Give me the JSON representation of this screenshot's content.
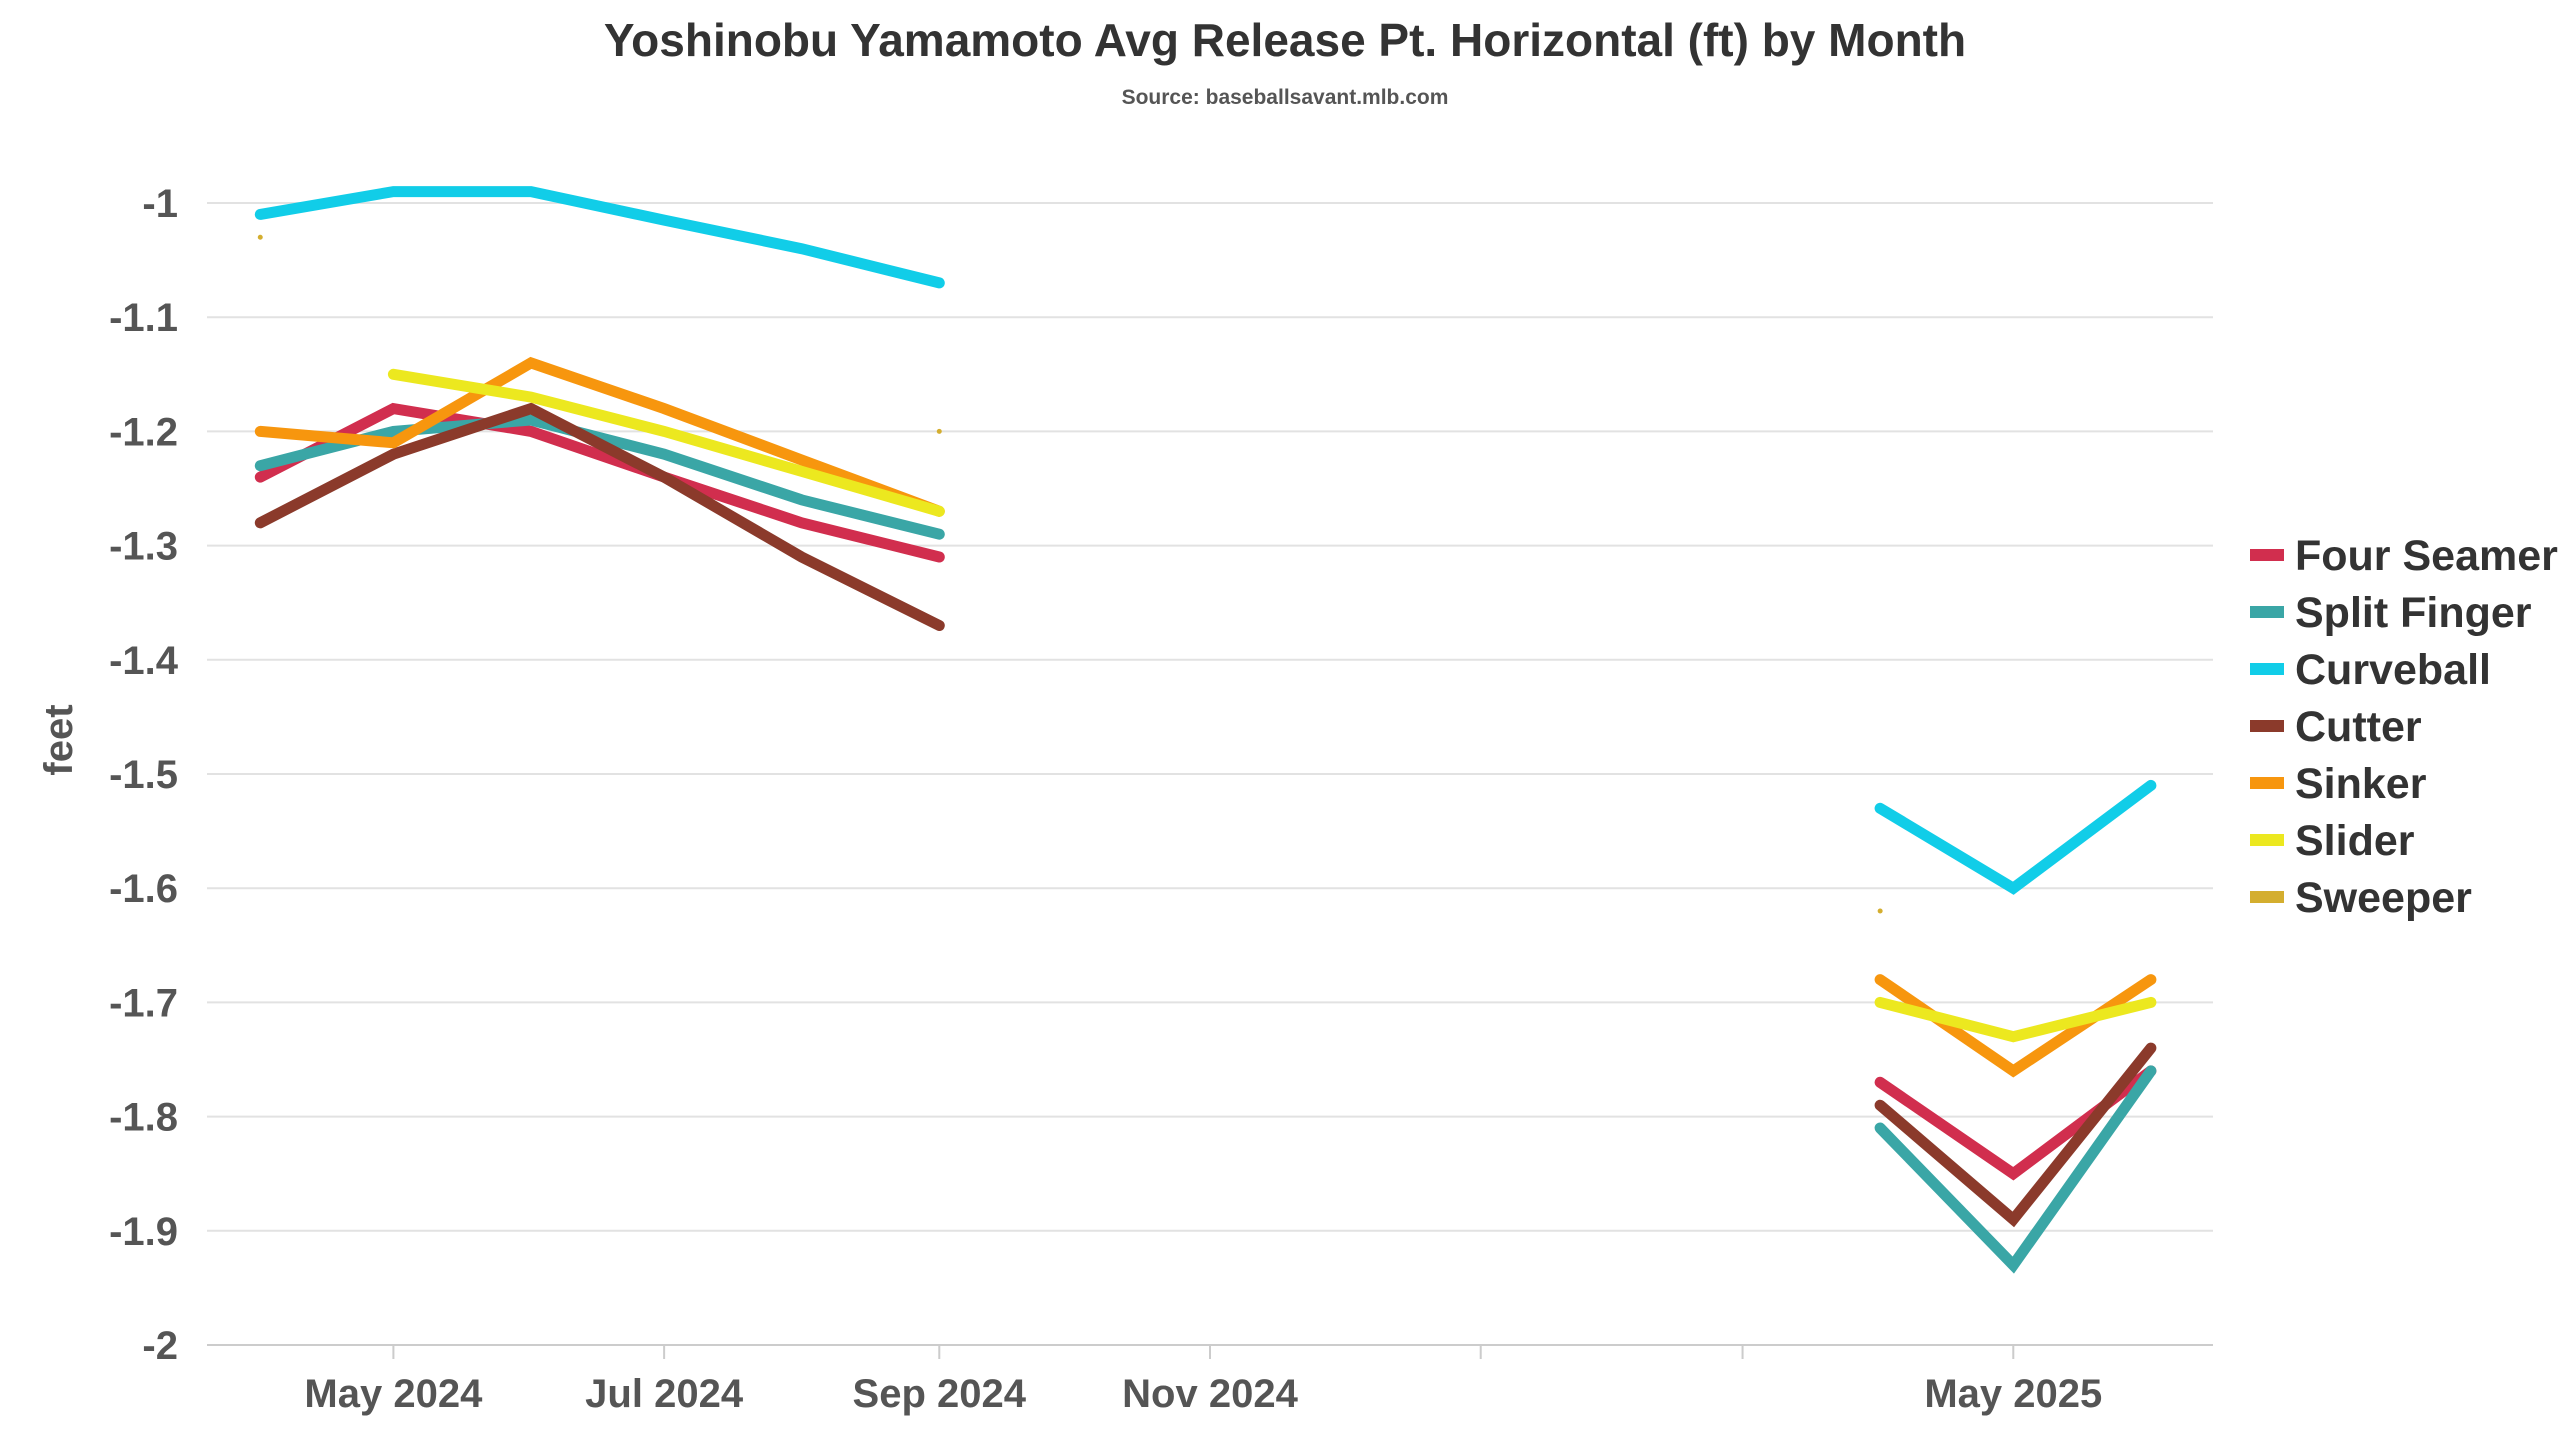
{
  "chart_data": {
    "type": "line",
    "title": "Yoshinobu Yamamoto Avg Release Pt. Horizontal (ft) by Month",
    "subtitle": "Source: baseballsavant.mlb.com",
    "ylabel": "feet",
    "xlabel": "",
    "ylim": [
      -2,
      -0.95
    ],
    "y_ticks": [
      -1,
      -1.1,
      -1.2,
      -1.3,
      -1.4,
      -1.5,
      -1.6,
      -1.7,
      -1.8,
      -1.9,
      -2
    ],
    "y_tick_labels": [
      "-1",
      "-1.1",
      "-1.2",
      "-1.3",
      "-1.4",
      "-1.5",
      "-1.6",
      "-1.7",
      "-1.8",
      "-1.9",
      "-2"
    ],
    "x_ticks": [
      {
        "date": "2024-05",
        "label": "May 2024"
      },
      {
        "date": "2024-07",
        "label": "Jul 2024"
      },
      {
        "date": "2024-09",
        "label": "Sep 2024"
      },
      {
        "date": "2024-11",
        "label": "Nov 2024"
      },
      {
        "date": "2025-01",
        "label": ""
      },
      {
        "date": "2025-03",
        "label": ""
      },
      {
        "date": "2025-05",
        "label": "May 2025"
      }
    ],
    "x_range": [
      "2024-03-20",
      "2025-06-15"
    ],
    "grid": true,
    "legend_position": "right",
    "series": [
      {
        "name": "Four Seamer",
        "color": "#d12e4e",
        "points": [
          {
            "date": "2024-04",
            "y": -1.24
          },
          {
            "date": "2024-05",
            "y": -1.18
          },
          {
            "date": "2024-06",
            "y": -1.2
          },
          {
            "date": "2024-07",
            "y": -1.24
          },
          {
            "date": "2024-08",
            "y": -1.28
          },
          {
            "date": "2024-09",
            "y": -1.31
          },
          {
            "date": "2025-04",
            "y": -1.77
          },
          {
            "date": "2025-05",
            "y": -1.85
          },
          {
            "date": "2025-06",
            "y": -1.76
          }
        ]
      },
      {
        "name": "Split Finger",
        "color": "#3aa6a6",
        "points": [
          {
            "date": "2024-04",
            "y": -1.23
          },
          {
            "date": "2024-05",
            "y": -1.2
          },
          {
            "date": "2024-06",
            "y": -1.19
          },
          {
            "date": "2024-07",
            "y": -1.22
          },
          {
            "date": "2024-08",
            "y": -1.26
          },
          {
            "date": "2024-09",
            "y": -1.29
          },
          {
            "date": "2025-04",
            "y": -1.81
          },
          {
            "date": "2025-05",
            "y": -1.93
          },
          {
            "date": "2025-06",
            "y": -1.76
          }
        ]
      },
      {
        "name": "Curveball",
        "color": "#11cde8",
        "points": [
          {
            "date": "2024-04",
            "y": -1.01
          },
          {
            "date": "2024-05",
            "y": -0.99
          },
          {
            "date": "2024-06",
            "y": -0.99
          },
          {
            "date": "2024-07",
            "y": -1.015
          },
          {
            "date": "2024-08",
            "y": -1.04
          },
          {
            "date": "2024-09",
            "y": -1.07
          },
          {
            "date": "2025-04",
            "y": -1.53
          },
          {
            "date": "2025-05",
            "y": -1.6
          },
          {
            "date": "2025-06",
            "y": -1.51
          }
        ]
      },
      {
        "name": "Cutter",
        "color": "#8b3a2b",
        "points": [
          {
            "date": "2024-04",
            "y": -1.28
          },
          {
            "date": "2024-05",
            "y": -1.22
          },
          {
            "date": "2024-06",
            "y": -1.18
          },
          {
            "date": "2024-07",
            "y": -1.24
          },
          {
            "date": "2024-08",
            "y": -1.31
          },
          {
            "date": "2024-09",
            "y": -1.37
          },
          {
            "date": "2025-04",
            "y": -1.79
          },
          {
            "date": "2025-05",
            "y": -1.89
          },
          {
            "date": "2025-06",
            "y": -1.74
          }
        ]
      },
      {
        "name": "Sinker",
        "color": "#f7960e",
        "points": [
          {
            "date": "2024-04",
            "y": -1.2
          },
          {
            "date": "2024-05",
            "y": -1.21
          },
          {
            "date": "2024-06",
            "y": -1.14
          },
          {
            "date": "2024-07",
            "y": -1.18
          },
          {
            "date": "2024-08",
            "y": -1.225
          },
          {
            "date": "2024-09",
            "y": -1.27
          },
          {
            "date": "2025-04",
            "y": -1.68
          },
          {
            "date": "2025-05",
            "y": -1.76
          },
          {
            "date": "2025-06",
            "y": -1.68
          }
        ]
      },
      {
        "name": "Slider",
        "color": "#ece81f",
        "points": [
          {
            "date": "2024-05",
            "y": -1.15
          },
          {
            "date": "2024-06",
            "y": -1.17
          },
          {
            "date": "2024-07",
            "y": -1.2
          },
          {
            "date": "2024-08",
            "y": -1.235
          },
          {
            "date": "2024-09",
            "y": -1.27
          },
          {
            "date": "2025-04",
            "y": -1.7
          },
          {
            "date": "2025-05",
            "y": -1.73
          },
          {
            "date": "2025-06",
            "y": -1.7
          }
        ]
      },
      {
        "name": "Sweeper",
        "color": "#d4ae2f",
        "points": [
          {
            "date": "2024-04",
            "y": -1.03
          },
          {
            "date": "2024-09",
            "y": -1.2
          },
          {
            "date": "2025-04",
            "y": -1.62
          }
        ]
      }
    ]
  }
}
